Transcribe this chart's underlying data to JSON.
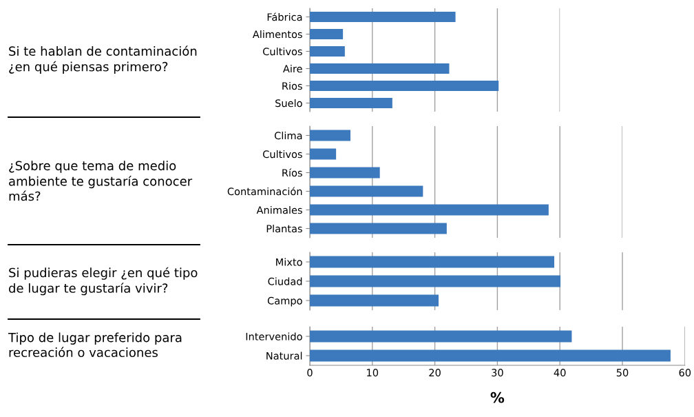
{
  "chart_data": [
    {
      "type": "bar",
      "orientation": "horizontal",
      "title": "Si te hablan de contaminación ¿en qué piensas primero?",
      "categories": [
        "Fábrica",
        "Alimentos",
        "Cultivos",
        "Aire",
        "Rios",
        "Suelo"
      ],
      "values": [
        23.3,
        5.3,
        5.6,
        22.3,
        30.2,
        13.2
      ],
      "color": "#3d7abd",
      "xlim": [
        0,
        40
      ],
      "xticks": [
        0,
        10,
        20,
        30,
        40
      ],
      "grid": "x",
      "tick_labels": "y"
    },
    {
      "type": "bar",
      "orientation": "horizontal",
      "title": "¿Sobre que tema de medio ambiente te gustaría conocer más?",
      "categories": [
        "Clima",
        "Cultivos",
        "Ríos",
        "Contaminación",
        "Animales",
        "Plantas"
      ],
      "values": [
        6.5,
        4.2,
        11.2,
        18.1,
        38.2,
        21.9
      ],
      "color": "#3d7abd",
      "xlim": [
        0,
        50
      ],
      "xticks": [
        0,
        10,
        20,
        30,
        40,
        50
      ],
      "grid": "x",
      "tick_labels": "y"
    },
    {
      "type": "bar",
      "orientation": "horizontal",
      "title": "Si pudieras elegir ¿en qué tipo de lugar te gustaría vivir?",
      "categories": [
        "Mixto",
        "Ciudad",
        "Campo"
      ],
      "values": [
        39.1,
        40.1,
        20.6
      ],
      "color": "#3d7abd",
      "xlim": [
        0,
        60
      ],
      "xticks": [
        0,
        10,
        20,
        30,
        40,
        50
      ],
      "grid": "x",
      "tick_labels": "y"
    },
    {
      "type": "bar",
      "orientation": "horizontal",
      "title": "Tipo de lugar preferido para recreación o vacaciones",
      "categories": [
        "Intervenido",
        "Natural"
      ],
      "values": [
        41.9,
        57.7
      ],
      "color": "#3d7abd",
      "xlim": [
        0,
        60
      ],
      "xticks": [
        0,
        10,
        20,
        30,
        40,
        50,
        60
      ],
      "grid": "x",
      "xlabel": "%"
    }
  ]
}
